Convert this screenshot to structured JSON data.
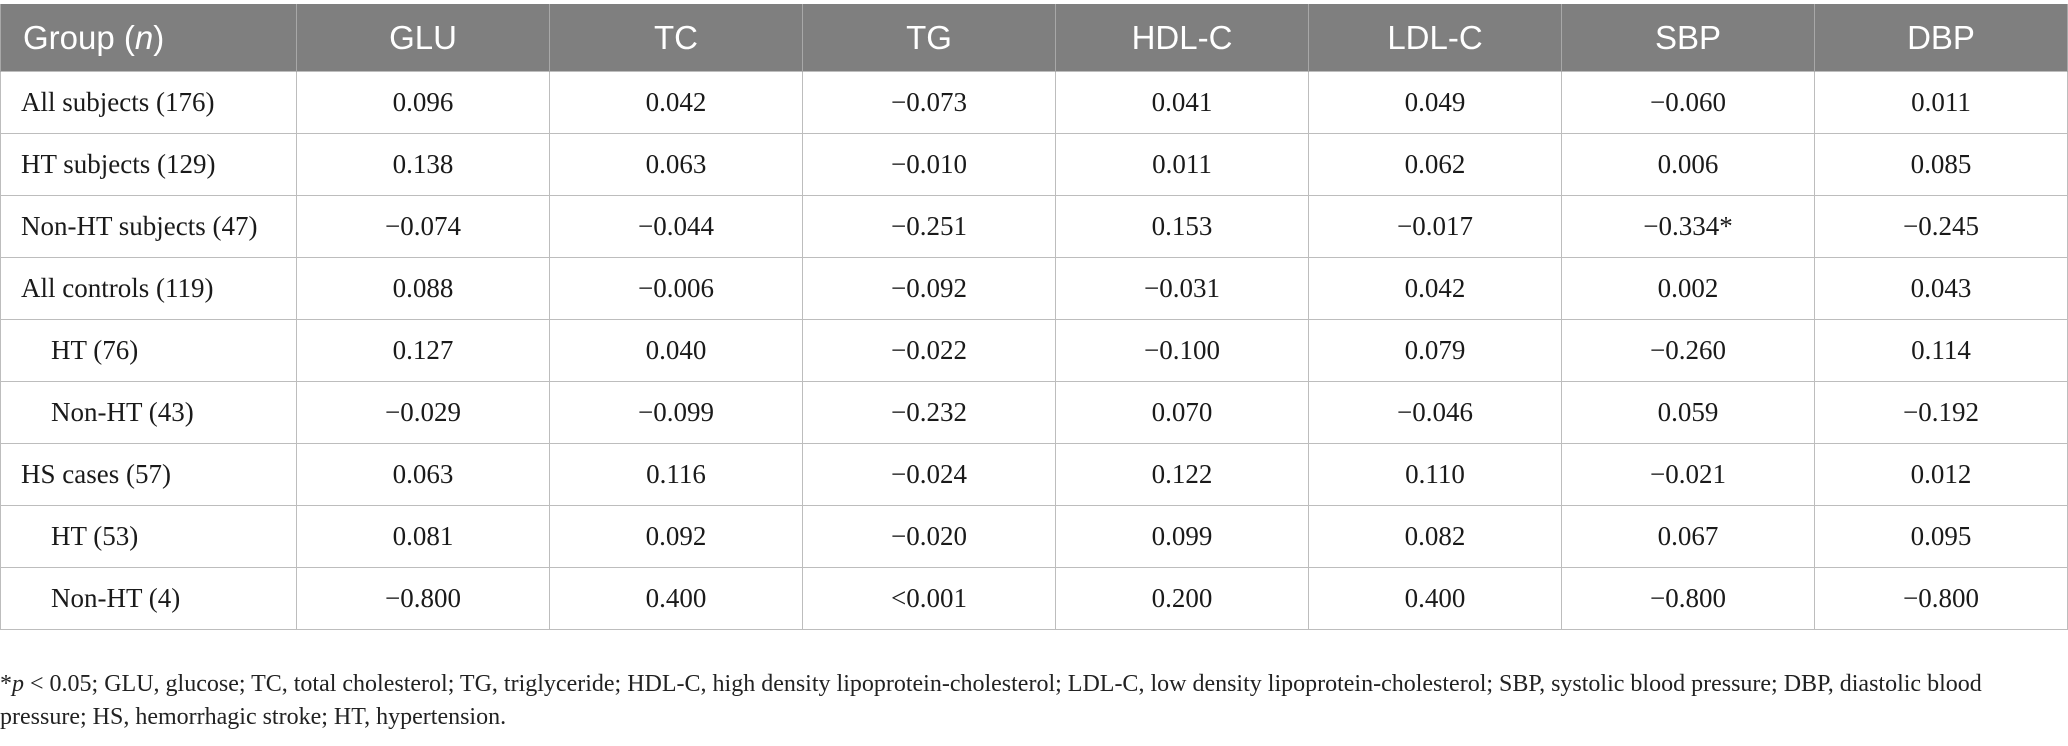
{
  "table": {
    "header": {
      "group_label": "Group (",
      "group_n": "n",
      "group_close": ")",
      "columns": [
        "GLU",
        "TC",
        "TG",
        "HDL-C",
        "LDL-C",
        "SBP",
        "DBP"
      ]
    },
    "rows": [
      {
        "label": "All subjects (176)",
        "indent": false,
        "values": [
          "0.096",
          "0.042",
          "−0.073",
          "0.041",
          "0.049",
          "−0.060",
          "0.011"
        ]
      },
      {
        "label": "HT subjects (129)",
        "indent": false,
        "values": [
          "0.138",
          "0.063",
          "−0.010",
          "0.011",
          "0.062",
          "0.006",
          "0.085"
        ]
      },
      {
        "label": "Non-HT subjects (47)",
        "indent": false,
        "values": [
          "−0.074",
          "−0.044",
          "−0.251",
          "0.153",
          "−0.017",
          "−0.334*",
          "−0.245"
        ]
      },
      {
        "label": "All controls (119)",
        "indent": false,
        "values": [
          "0.088",
          "−0.006",
          "−0.092",
          "−0.031",
          "0.042",
          "0.002",
          "0.043"
        ]
      },
      {
        "label": "HT (76)",
        "indent": true,
        "values": [
          "0.127",
          "0.040",
          "−0.022",
          "−0.100",
          "0.079",
          "−0.260",
          "0.114"
        ]
      },
      {
        "label": "Non-HT (43)",
        "indent": true,
        "values": [
          "−0.029",
          "−0.099",
          "−0.232",
          "0.070",
          "−0.046",
          "0.059",
          "−0.192"
        ]
      },
      {
        "label": "HS cases (57)",
        "indent": false,
        "values": [
          "0.063",
          "0.116",
          "−0.024",
          "0.122",
          "0.110",
          "−0.021",
          "0.012"
        ]
      },
      {
        "label": "HT (53)",
        "indent": true,
        "values": [
          "0.081",
          "0.092",
          "−0.020",
          "0.099",
          "0.082",
          "0.067",
          "0.095"
        ]
      },
      {
        "label": "Non-HT (4)",
        "indent": true,
        "values": [
          "−0.800",
          "0.400",
          "<0.001",
          "0.200",
          "0.400",
          "−0.800",
          "−0.800"
        ]
      }
    ]
  },
  "footnote": {
    "star": "*",
    "p": "p",
    "text": " < 0.05; GLU, glucose; TC, total cholesterol; TG, triglyceride; HDL-C, high density lipoprotein-cholesterol; LDL-C, low density lipoprotein-cholesterol; SBP, systolic blood pressure; DBP, diastolic blood pressure; HS, hemorrhagic stroke; HT, hypertension."
  }
}
